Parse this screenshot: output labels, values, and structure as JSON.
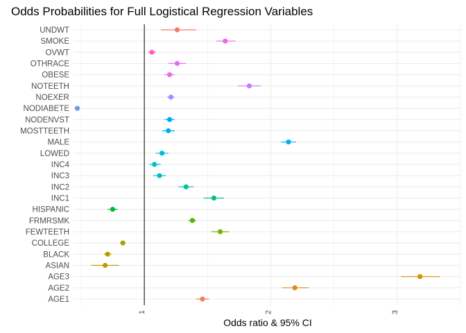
{
  "chart_data": {
    "type": "scatter",
    "title": "Odds Probabilities for Full Logistical Regression Variables",
    "xlabel": "Odds ratio & 95% CI",
    "ylabel": "",
    "xlim": [
      0.44,
      3.5
    ],
    "x_ticks": [
      "1",
      "2",
      "3"
    ],
    "grid": true,
    "legend": "none",
    "reference_line_x": 1,
    "series": [
      {
        "label": "UNDWT",
        "x": 1.26,
        "ci": [
          1.13,
          1.41
        ],
        "color": "#F8766D"
      },
      {
        "label": "SMOKE",
        "x": 1.64,
        "ci": [
          1.57,
          1.72
        ],
        "color": "#F265E7"
      },
      {
        "label": "OVWT",
        "x": 1.06,
        "ci": [
          1.03,
          1.09
        ],
        "color": "#FF63B6"
      },
      {
        "label": "OTHRACE",
        "x": 1.26,
        "ci": [
          1.19,
          1.33
        ],
        "color": "#E36EF6"
      },
      {
        "label": "OBESE",
        "x": 1.2,
        "ci": [
          1.16,
          1.24
        ],
        "color": "#EE6AEF"
      },
      {
        "label": "NOTEETH",
        "x": 1.83,
        "ci": [
          1.74,
          1.92
        ],
        "color": "#C77CFF"
      },
      {
        "label": "NOEXER",
        "x": 1.21,
        "ci": [
          1.18,
          1.24
        ],
        "color": "#A68AFF"
      },
      {
        "label": "NODIABETE",
        "x": 0.47,
        "ci": [
          0.46,
          0.48
        ],
        "color": "#6E97F0"
      },
      {
        "label": "NODENVST",
        "x": 1.2,
        "ci": [
          1.16,
          1.24
        ],
        "color": "#00A8FF"
      },
      {
        "label": "MOSTTEETH",
        "x": 1.19,
        "ci": [
          1.14,
          1.24
        ],
        "color": "#00ADF0"
      },
      {
        "label": "MALE",
        "x": 2.14,
        "ci": [
          2.08,
          2.2
        ],
        "color": "#00B2F0"
      },
      {
        "label": "LOWED",
        "x": 1.14,
        "ci": [
          1.09,
          1.19
        ],
        "color": "#00BBDB"
      },
      {
        "label": "INC4",
        "x": 1.08,
        "ci": [
          1.04,
          1.13
        ],
        "color": "#00BDCF"
      },
      {
        "label": "INC3",
        "x": 1.12,
        "ci": [
          1.07,
          1.17
        ],
        "color": "#00BFC4"
      },
      {
        "label": "INC2",
        "x": 1.33,
        "ci": [
          1.27,
          1.39
        ],
        "color": "#00C1A3"
      },
      {
        "label": "INC1",
        "x": 1.55,
        "ci": [
          1.47,
          1.63
        ],
        "color": "#00BF7D"
      },
      {
        "label": "HISPANIC",
        "x": 0.75,
        "ci": [
          0.71,
          0.79
        ],
        "color": "#00BA38"
      },
      {
        "label": "FRMRSMK",
        "x": 1.38,
        "ci": [
          1.35,
          1.41
        ],
        "color": "#53B400"
      },
      {
        "label": "FEWTEETH",
        "x": 1.6,
        "ci": [
          1.53,
          1.67
        ],
        "color": "#7CAE00"
      },
      {
        "label": "COLLEGE",
        "x": 0.83,
        "ci": [
          0.81,
          0.85
        ],
        "color": "#A3A500"
      },
      {
        "label": "BLACK",
        "x": 0.71,
        "ci": [
          0.68,
          0.74
        ],
        "color": "#B79F00"
      },
      {
        "label": "ASIAN",
        "x": 0.69,
        "ci": [
          0.58,
          0.8
        ],
        "color": "#C49A00"
      },
      {
        "label": "AGE3",
        "x": 3.18,
        "ci": [
          3.03,
          3.34
        ],
        "color": "#D89000"
      },
      {
        "label": "AGE2",
        "x": 2.19,
        "ci": [
          2.09,
          2.3
        ],
        "color": "#E7861B"
      },
      {
        "label": "AGE1",
        "x": 1.46,
        "ci": [
          1.41,
          1.51
        ],
        "color": "#F07F55"
      }
    ]
  }
}
